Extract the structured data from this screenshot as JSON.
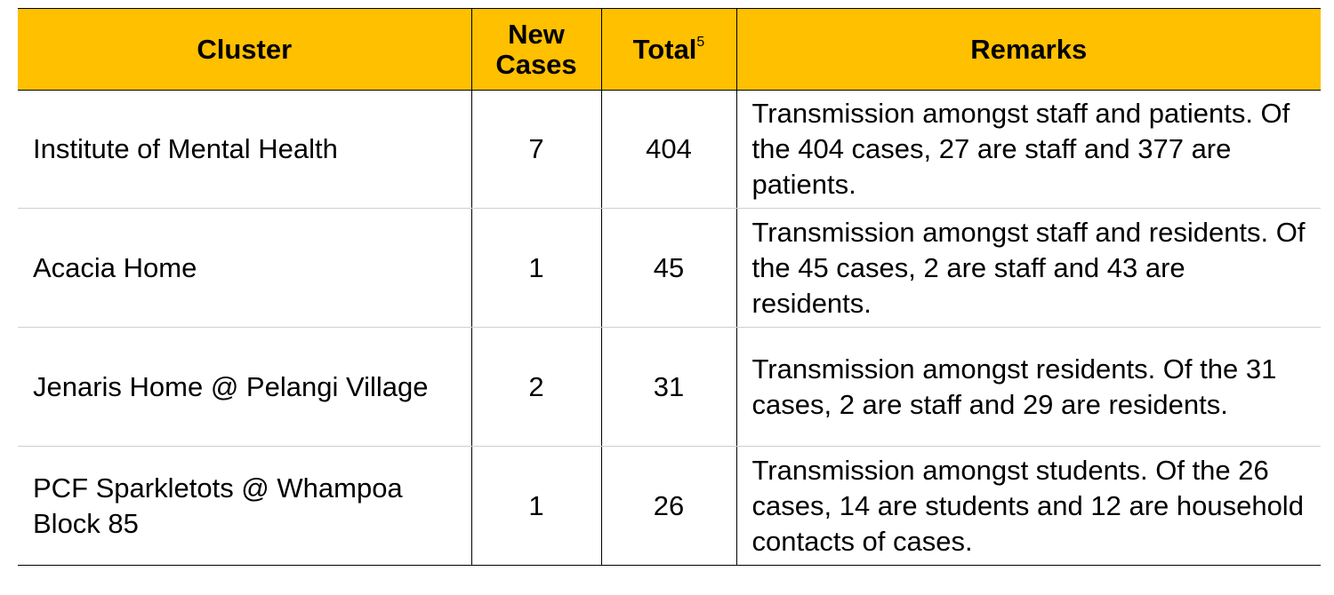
{
  "table": {
    "headers": {
      "cluster": "Cluster",
      "new_cases_line1": "New",
      "new_cases_line2": "Cases",
      "total": "Total",
      "total_footnote": "5",
      "remarks": "Remarks"
    },
    "rows": [
      {
        "cluster": "Institute of Mental Health",
        "new_cases": "7",
        "total": "404",
        "remarks": "Transmission amongst staff and patients. Of the 404 cases, 27 are staff and 377 are patients."
      },
      {
        "cluster": "Acacia Home",
        "new_cases": "1",
        "total": "45",
        "remarks": "Transmission amongst staff and residents. Of the 45 cases, 2 are staff and 43 are residents."
      },
      {
        "cluster": "Jenaris Home @ Pelangi Village",
        "new_cases": "2",
        "total": "31",
        "remarks": "Transmission amongst residents. Of the 31 cases, 2 are staff and 29 are residents."
      },
      {
        "cluster": "PCF Sparkletots @ Whampoa Block 85",
        "new_cases": "1",
        "total": "26",
        "remarks": "Transmission amongst students. Of the 26 cases, 14 are students and 12 are household contacts of cases."
      }
    ]
  },
  "colors": {
    "header_background": "#FFC000",
    "border": "#000000",
    "row_divider": "#cfcfcf"
  }
}
